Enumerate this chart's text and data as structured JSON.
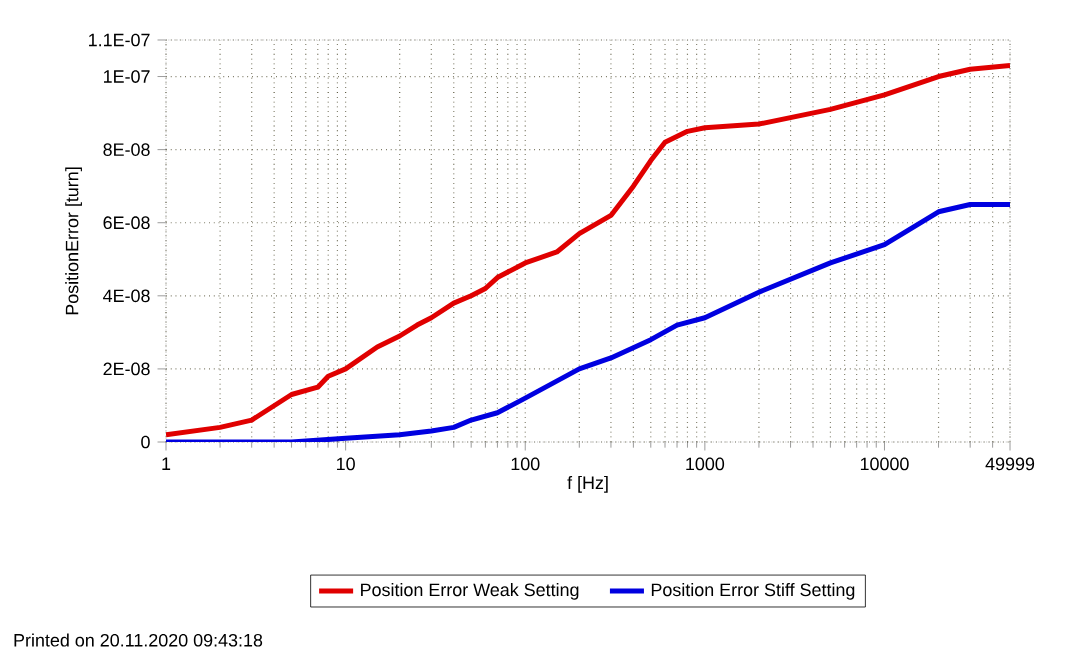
{
  "chart_data": {
    "type": "line",
    "xlabel": "f [Hz]",
    "ylabel": "PositionError [turn]",
    "log": "x",
    "xlim": [
      1,
      49999
    ],
    "ylim": [
      0,
      1.1e-07
    ],
    "xticks": [
      1,
      10,
      100,
      1000,
      10000,
      49999
    ],
    "yticks": [
      0,
      {
        "value": 2e-08,
        "label": "2E-08"
      },
      {
        "value": 4e-08,
        "label": "4E-08"
      },
      {
        "value": 6e-08,
        "label": "6E-08"
      },
      {
        "value": 8e-08,
        "label": "8E-08"
      },
      {
        "value": 1e-07,
        "label": "1E-07"
      },
      {
        "value": 1.1e-07,
        "label": "1.1E-07"
      }
    ],
    "grid": true,
    "legend": "bottom",
    "marker": "none",
    "line_style": "solid",
    "annotations": [
      "Printed on 20.11.2020 09:43:18"
    ],
    "series": [
      {
        "name": "Position Error Weak Setting",
        "color": "#e00000",
        "x": [
          1,
          2,
          3,
          5,
          7,
          8,
          10,
          15,
          20,
          25,
          30,
          40,
          50,
          60,
          70,
          100,
          150,
          200,
          300,
          400,
          500,
          600,
          800,
          1000,
          2000,
          5000,
          10000,
          20000,
          30000,
          49999
        ],
        "values": [
          2e-09,
          4e-09,
          6e-09,
          1.3e-08,
          1.5e-08,
          1.8e-08,
          2e-08,
          2.6e-08,
          2.9e-08,
          3.2e-08,
          3.4e-08,
          3.8e-08,
          4e-08,
          4.2e-08,
          4.5e-08,
          4.9e-08,
          5.2e-08,
          5.7e-08,
          6.2e-08,
          7e-08,
          7.7e-08,
          8.2e-08,
          8.5e-08,
          8.6e-08,
          8.7e-08,
          9.1e-08,
          9.5e-08,
          1e-07,
          1.02e-07,
          1.03e-07
        ]
      },
      {
        "name": "Position Error Stiff Setting",
        "color": "#0000e0",
        "x": [
          1,
          5,
          10,
          20,
          30,
          40,
          50,
          70,
          100,
          200,
          300,
          500,
          700,
          1000,
          2000,
          5000,
          10000,
          20000,
          30000,
          49999
        ],
        "values": [
          0,
          0,
          1e-09,
          2e-09,
          3e-09,
          4e-09,
          6e-09,
          8e-09,
          1.2e-08,
          2e-08,
          2.3e-08,
          2.8e-08,
          3.2e-08,
          3.4e-08,
          4.1e-08,
          4.9e-08,
          5.4e-08,
          6.3e-08,
          6.5e-08,
          6.5e-08
        ]
      }
    ]
  }
}
